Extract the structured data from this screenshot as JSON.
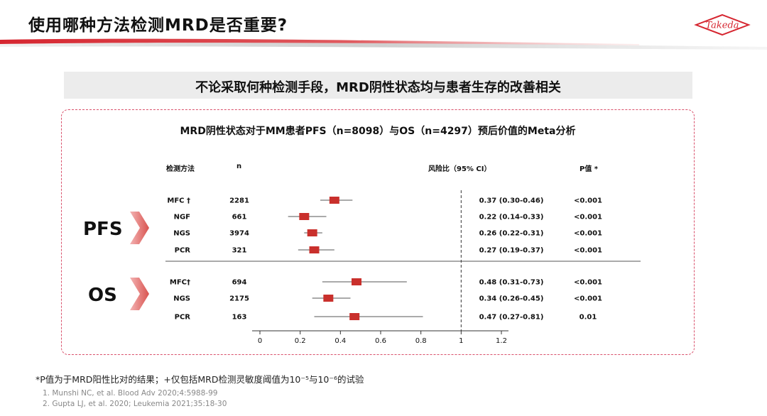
{
  "slide": {
    "title": "使用哪种方法检测MRD是否重要?",
    "logo_text": "Takeda",
    "subtitle": "不论采取何种检测手段，MRD阴性状态均与患者生存的改善相关",
    "footnote": "*P值为于MRD阳性比对的结果；+仅包括MRD检测灵敏度阈值为10⁻⁵与10⁻⁶的试验",
    "references": [
      "1. Munshi NC, et al. Blood Adv 2020;4:5988-99",
      "2. Gupta LJ, et al. 2020; Leukemia 2021;35:18-30"
    ],
    "groups": {
      "pfs": "PFS",
      "os": "OS"
    },
    "colors": {
      "accent": "#c9302c",
      "header_red": "#d62630",
      "dashed_border": "#d9506b"
    }
  },
  "chart_data": {
    "type": "forest",
    "title": "MRD阴性状态对于MM患者PFS（n=8098）与OS（n=4297）预后价值的Meta分析",
    "columns": {
      "method": "检测方法",
      "n": "n",
      "hr": "风险比（95% CI）",
      "p": "P值 *"
    },
    "x_ticks": [
      0,
      0.2,
      0.4,
      0.6,
      0.8,
      1,
      1.2
    ],
    "x_range": [
      0,
      1.2
    ],
    "reference_line": 1,
    "rows": [
      {
        "group": "PFS",
        "method": "MFC †",
        "n": "2281",
        "hr": 0.37,
        "lo": 0.3,
        "hi": 0.46,
        "hr_text": "0.37 (0.30-0.46)",
        "p": "<0.001"
      },
      {
        "group": "PFS",
        "method": "NGF",
        "n": "661",
        "hr": 0.22,
        "lo": 0.14,
        "hi": 0.33,
        "hr_text": "0.22 (0.14-0.33)",
        "p": "<0.001"
      },
      {
        "group": "PFS",
        "method": "NGS",
        "n": "3974",
        "hr": 0.26,
        "lo": 0.22,
        "hi": 0.31,
        "hr_text": "0.26 (0.22-0.31)",
        "p": "<0.001"
      },
      {
        "group": "PFS",
        "method": "PCR",
        "n": "321",
        "hr": 0.27,
        "lo": 0.19,
        "hi": 0.37,
        "hr_text": "0.27 (0.19-0.37)",
        "p": "<0.001"
      },
      {
        "group": "OS",
        "method": "MFC†",
        "n": "694",
        "hr": 0.48,
        "lo": 0.31,
        "hi": 0.73,
        "hr_text": "0.48 (0.31-0.73)",
        "p": "<0.001"
      },
      {
        "group": "OS",
        "method": "NGS",
        "n": "2175",
        "hr": 0.34,
        "lo": 0.26,
        "hi": 0.45,
        "hr_text": "0.34 (0.26-0.45)",
        "p": "<0.001"
      },
      {
        "group": "OS",
        "method": "PCR",
        "n": "163",
        "hr": 0.47,
        "lo": 0.27,
        "hi": 0.81,
        "hr_text": "0.47 (0.27-0.81)",
        "p": "0.01"
      }
    ]
  }
}
